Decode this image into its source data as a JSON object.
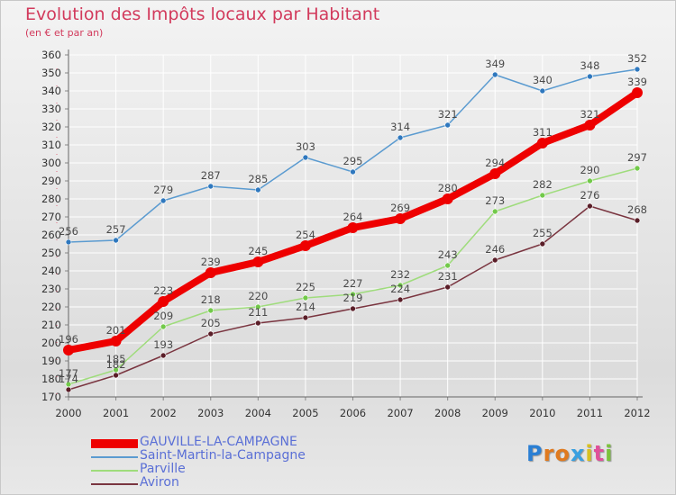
{
  "header": {
    "title": "Evolution des Impôts locaux par Habitant",
    "subtitle": "(en € et par an)"
  },
  "brand": {
    "letters": [
      "P",
      "r",
      "o",
      "x",
      "i",
      "t",
      "i"
    ],
    "colors": [
      "#2a7fd4",
      "#e07a1f",
      "#e07a1f",
      "#3aa0e0",
      "#d8c020",
      "#e0509a",
      "#7cc23c"
    ]
  },
  "chart_data": {
    "type": "line",
    "title": "Evolution des Impôts locaux par Habitant",
    "subtitle": "(en € et par an)",
    "xlabel": "",
    "ylabel": "",
    "x": [
      2000,
      2001,
      2002,
      2003,
      2004,
      2005,
      2006,
      2007,
      2008,
      2009,
      2010,
      2011,
      2012
    ],
    "ylim": [
      170,
      360
    ],
    "yticks": [
      170,
      180,
      190,
      200,
      210,
      220,
      230,
      240,
      250,
      260,
      270,
      280,
      290,
      300,
      310,
      320,
      330,
      340,
      350,
      360
    ],
    "grid": true,
    "legend_position": "bottom-left",
    "series": [
      {
        "name": "Saint-Martin-la-Campagne",
        "values": [
          256,
          257,
          279,
          287,
          285,
          303,
          295,
          314,
          321,
          349,
          340,
          348,
          352
        ],
        "color": "#5b9bd0",
        "marker": "#2f78be",
        "label_color": "#4a4a4a"
      },
      {
        "name": "Parville",
        "values": [
          177,
          185,
          209,
          218,
          220,
          225,
          227,
          232,
          243,
          273,
          282,
          290,
          297
        ],
        "color": "#9fdc7c",
        "marker": "#72c94a",
        "label_color": "#4a4a4a"
      },
      {
        "name": "Aviron",
        "values": [
          174,
          182,
          193,
          205,
          211,
          214,
          219,
          224,
          231,
          246,
          255,
          276,
          268
        ],
        "color": "#7a3540",
        "marker": "#5a1e28",
        "label_color": "#4a4a4a"
      },
      {
        "name": "GAUVILLE-LA-CAMPAGNE",
        "values": [
          196,
          201,
          223,
          239,
          245,
          254,
          264,
          269,
          280,
          294,
          311,
          321,
          339
        ],
        "color": "#ee0000",
        "marker": "#ee0000",
        "label_color": "#4a4a4a",
        "emphasis": true
      }
    ],
    "legend_order": [
      "GAUVILLE-LA-CAMPAGNE",
      "Saint-Martin-la-Campagne",
      "Parville",
      "Aviron"
    ]
  }
}
